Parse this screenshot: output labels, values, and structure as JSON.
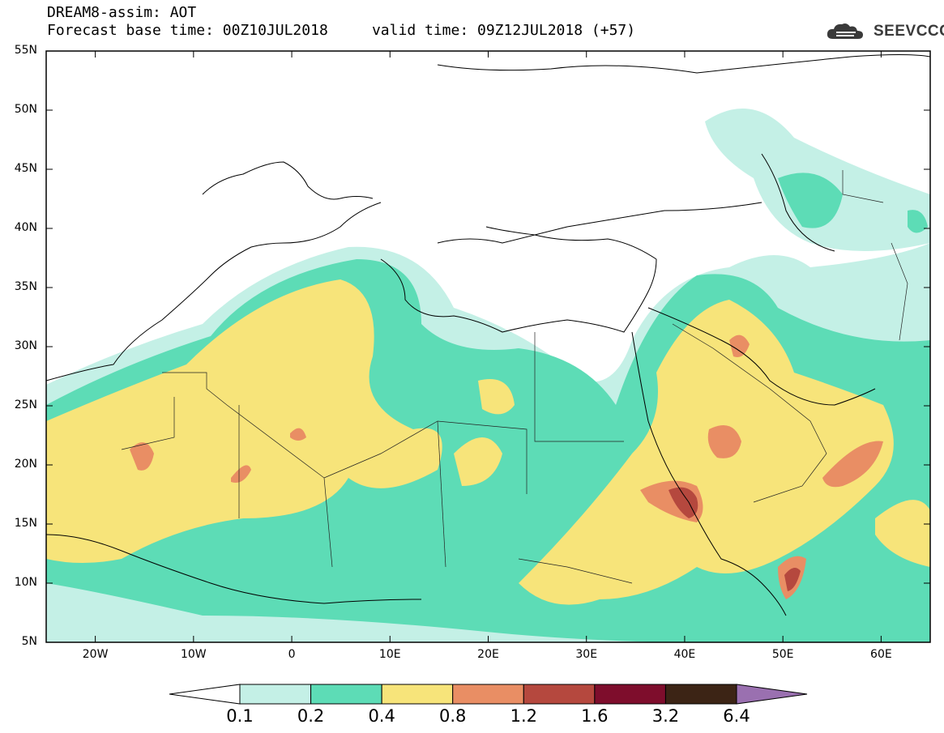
{
  "header": {
    "line1": "DREAM8-assim: AOT",
    "line2": "Forecast base time: 00Z10JUL2018     valid time: 09Z12JUL2018 (+57)"
  },
  "logo": {
    "text": "SEEVCCC",
    "icon": "cloud-icon",
    "color": "#3a3a3a"
  },
  "map": {
    "projection": "lat-lon",
    "lon_range": [
      -25,
      65
    ],
    "lat_range": [
      5,
      55
    ],
    "lat_labels": [
      "55N",
      "50N",
      "45N",
      "40N",
      "35N",
      "30N",
      "25N",
      "20N",
      "15N",
      "10N",
      "5N"
    ],
    "lon_labels": [
      "20W",
      "10W",
      "0",
      "10E",
      "20E",
      "30E",
      "40E",
      "50E",
      "60E"
    ],
    "lat_values": [
      55,
      50,
      45,
      40,
      35,
      30,
      25,
      20,
      15,
      10,
      5
    ],
    "lon_values": [
      -20,
      -10,
      0,
      10,
      20,
      30,
      40,
      50,
      60
    ]
  },
  "colorbar": {
    "labels": [
      "0.1",
      "0.2",
      "0.4",
      "0.8",
      "1.2",
      "1.6",
      "3.2",
      "6.4"
    ],
    "colors": [
      "#c4f0e6",
      "#5ddcb6",
      "#f7e47a",
      "#e98e64",
      "#b5483e",
      "#7e0d2c",
      "#3c2415",
      "#9a70b0"
    ],
    "under_color": "#ffffff"
  }
}
